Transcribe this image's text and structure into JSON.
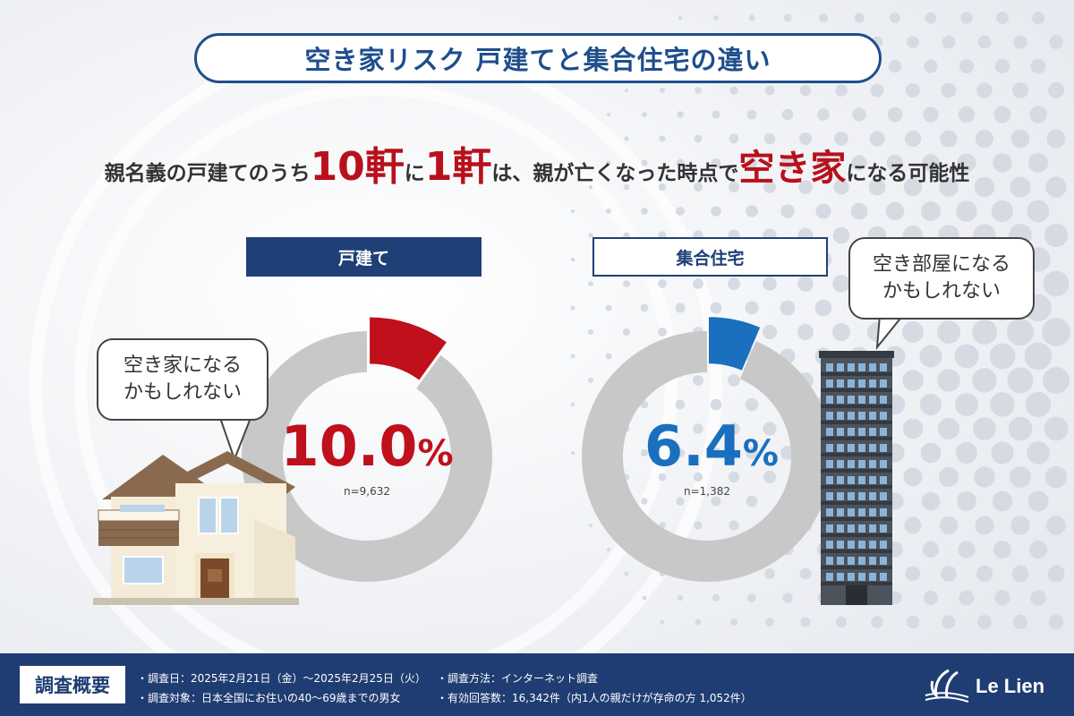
{
  "title": "空き家リスク 戸建てと集合住宅の違い",
  "headline": {
    "pre": "親名義の戸建てのうち",
    "big1": "10軒",
    "mid1": "に",
    "big2": "1軒",
    "mid2": "は、親が亡くなった時点で",
    "big3": "空き家",
    "post": "になる可能性"
  },
  "colors": {
    "navy": "#1f4077",
    "red": "#b8101c",
    "blue": "#1a6fbf",
    "ring_gray": "#c8c8c8"
  },
  "bubbles": {
    "house": [
      "空き家になる",
      "かもしれない"
    ],
    "apartment": [
      "空き部屋になる",
      "かもしれない"
    ]
  },
  "chart_data": [
    {
      "type": "pie",
      "category": "戸建て",
      "value": 10.0,
      "remainder": 90.0,
      "unit": "%",
      "display_number": "10.0",
      "n": "n=9,632",
      "highlight_color": "#c0101c"
    },
    {
      "type": "pie",
      "category": "集合住宅",
      "value": 6.4,
      "remainder": 93.6,
      "unit": "%",
      "display_number": "6.4",
      "n": "n=1,382",
      "highlight_color": "#1a6fbf"
    }
  ],
  "footer": {
    "tag": "調査概要",
    "date": "・調査日：2025年2月21日（金）～2025年2月25日（火）",
    "target": "・調査対象：日本全国にお住いの40～69歳までの男女",
    "method": "・調査方法：インターネット調査",
    "responses": "・有効回答数：16,342件（内1人の親だけが存命の方 1,052件）",
    "brand": "Le Lien"
  }
}
